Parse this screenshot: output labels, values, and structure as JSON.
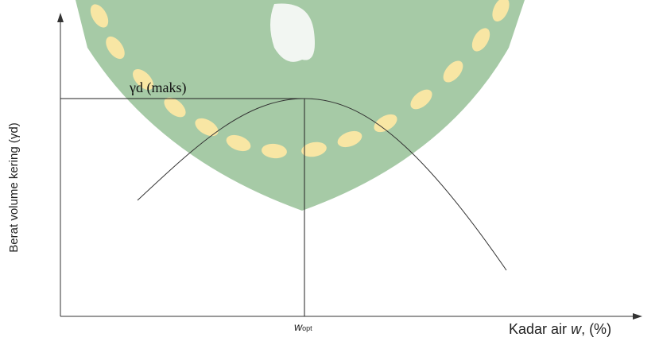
{
  "diagram": {
    "peak_label": "γd (maks)",
    "y_axis_label": "Berat volume kering (γd)",
    "x_axis_label": {
      "prefix": "Kadar air",
      "variable": "w",
      "suffix": ", (%)"
    },
    "optimum_label": {
      "symbol": "w",
      "subscript": "opt"
    }
  }
}
